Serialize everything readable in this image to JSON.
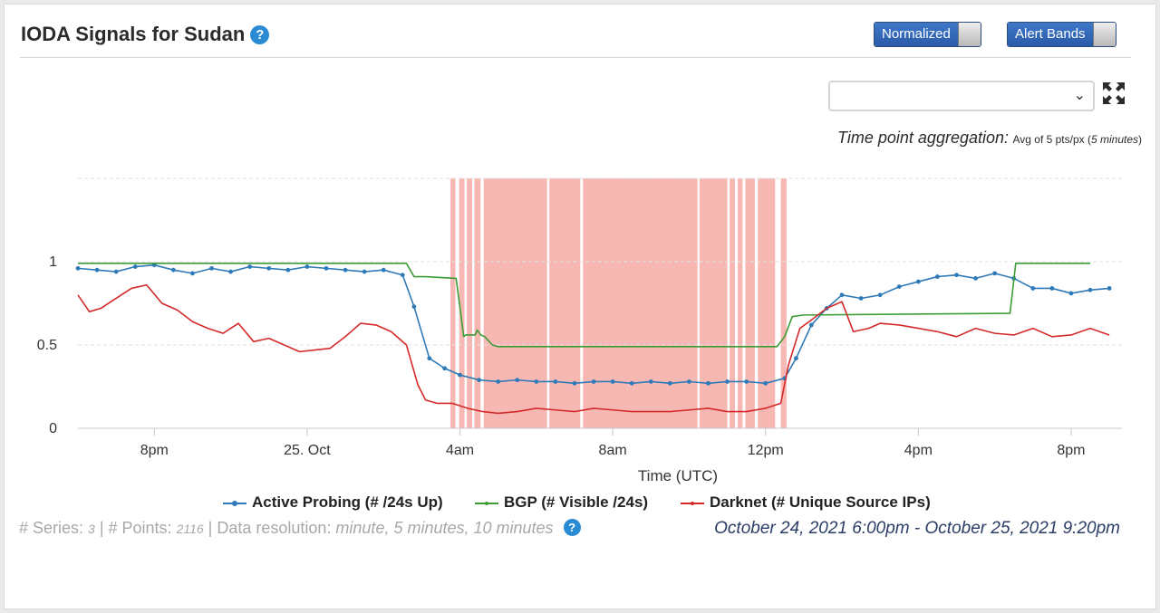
{
  "header": {
    "title": "IODA Signals for Sudan",
    "help_glyph": "?",
    "toggle_normalized": "Normalized",
    "toggle_alert_bands": "Alert Bands"
  },
  "controls": {
    "select_value": "",
    "chevron": "⌄",
    "aggregation_label": "Time point aggregation:",
    "aggregation_value_a": "Avg of 5 pts/px (",
    "aggregation_value_b": "5 minutes",
    "aggregation_value_c": ")"
  },
  "chart_data": {
    "type": "line",
    "xlabel": "Time (UTC)",
    "x_ticks": [
      "8pm",
      "25. Oct",
      "4am",
      "8am",
      "12pm",
      "4pm",
      "8pm"
    ],
    "x_tick_hours": [
      2,
      6,
      10,
      14,
      18,
      22,
      26
    ],
    "x_range_hours": [
      0,
      27.33
    ],
    "y_ticks": [
      "0",
      "0.5",
      "1"
    ],
    "y_tick_values": [
      0,
      0.5,
      1
    ],
    "ylim": [
      0,
      1.5
    ],
    "grid": "horizontal dashed",
    "legend_position": "bottom",
    "alert_band_color": "#f7b8b3",
    "alert_bands": [
      [
        9.75,
        9.88
      ],
      [
        9.98,
        10.12
      ],
      [
        10.18,
        10.32
      ],
      [
        10.38,
        10.54
      ],
      [
        10.62,
        12.28
      ],
      [
        12.34,
        13.15
      ],
      [
        13.22,
        16.22
      ],
      [
        16.27,
        17.0
      ],
      [
        17.06,
        17.2
      ],
      [
        17.27,
        17.4
      ],
      [
        17.47,
        17.72
      ],
      [
        17.8,
        18.25
      ],
      [
        18.4,
        18.55
      ]
    ],
    "series": [
      {
        "name": "Active Probing (# /24s Up)",
        "color": "#2f7ab8",
        "markers": true,
        "x": [
          0,
          0.5,
          1,
          1.5,
          2,
          2.5,
          3,
          3.5,
          4,
          4.5,
          5,
          5.5,
          6,
          6.5,
          7,
          7.5,
          8,
          8.5,
          8.8,
          9.2,
          9.6,
          10,
          10.5,
          11,
          11.5,
          12,
          12.5,
          13,
          13.5,
          14,
          14.5,
          15,
          15.5,
          16,
          16.5,
          17,
          17.5,
          18,
          18.5,
          18.8,
          19.2,
          19.6,
          20,
          20.5,
          21,
          21.5,
          22,
          22.5,
          23,
          23.5,
          24,
          24.5,
          25,
          25.5,
          26,
          26.5,
          27
        ],
        "values": [
          0.96,
          0.95,
          0.94,
          0.97,
          0.98,
          0.95,
          0.93,
          0.96,
          0.94,
          0.97,
          0.96,
          0.95,
          0.97,
          0.96,
          0.95,
          0.94,
          0.95,
          0.92,
          0.73,
          0.42,
          0.36,
          0.32,
          0.29,
          0.28,
          0.29,
          0.28,
          0.28,
          0.27,
          0.28,
          0.28,
          0.27,
          0.28,
          0.27,
          0.28,
          0.27,
          0.28,
          0.28,
          0.27,
          0.3,
          0.42,
          0.62,
          0.72,
          0.8,
          0.78,
          0.8,
          0.85,
          0.88,
          0.91,
          0.92,
          0.9,
          0.93,
          0.9,
          0.84,
          0.84,
          0.81,
          0.83,
          0.84
        ]
      },
      {
        "name": "BGP (# Visible /24s)",
        "color": "#3b9c34",
        "markers": false,
        "x": [
          0,
          8.6,
          8.8,
          9.1,
          9.9,
          10.1,
          10.15,
          10.4,
          10.45,
          10.55,
          10.65,
          10.85,
          11.0,
          16.0,
          18.0,
          18.3,
          18.5,
          18.7,
          19.0,
          24.4,
          24.55,
          26.5
        ],
        "values": [
          0.99,
          0.99,
          0.91,
          0.91,
          0.9,
          0.55,
          0.56,
          0.56,
          0.59,
          0.56,
          0.55,
          0.5,
          0.49,
          0.49,
          0.49,
          0.49,
          0.55,
          0.67,
          0.68,
          0.69,
          0.99,
          0.99
        ]
      },
      {
        "name": "Darknet (# Unique Source IPs)",
        "color": "#d42a2a",
        "markers": false,
        "x": [
          0,
          0.3,
          0.6,
          1,
          1.4,
          1.8,
          2.2,
          2.6,
          3,
          3.4,
          3.8,
          4.2,
          4.6,
          5,
          5.4,
          5.8,
          6.2,
          6.6,
          7,
          7.4,
          7.8,
          8.2,
          8.6,
          8.9,
          9.1,
          9.4,
          9.8,
          10.2,
          10.6,
          11,
          11.5,
          12,
          12.5,
          13,
          13.5,
          14,
          14.5,
          15,
          15.5,
          16,
          16.5,
          17,
          17.5,
          18,
          18.4,
          18.6,
          18.9,
          19.2,
          19.6,
          20,
          20.3,
          20.7,
          21,
          21.5,
          22,
          22.5,
          23,
          23.5,
          24,
          24.5,
          25,
          25.5,
          26,
          26.5,
          27
        ],
        "values": [
          0.8,
          0.7,
          0.72,
          0.78,
          0.84,
          0.86,
          0.75,
          0.71,
          0.64,
          0.6,
          0.57,
          0.63,
          0.52,
          0.54,
          0.5,
          0.46,
          0.47,
          0.48,
          0.55,
          0.63,
          0.62,
          0.58,
          0.5,
          0.26,
          0.17,
          0.15,
          0.15,
          0.12,
          0.1,
          0.09,
          0.1,
          0.12,
          0.11,
          0.1,
          0.12,
          0.11,
          0.1,
          0.1,
          0.1,
          0.11,
          0.12,
          0.1,
          0.1,
          0.12,
          0.15,
          0.38,
          0.6,
          0.65,
          0.72,
          0.76,
          0.58,
          0.6,
          0.63,
          0.62,
          0.6,
          0.58,
          0.55,
          0.6,
          0.57,
          0.56,
          0.6,
          0.55,
          0.56,
          0.6,
          0.56
        ]
      }
    ]
  },
  "footer": {
    "series_label": "# Series: ",
    "series_count": "3",
    "points_label": " | # Points: ",
    "points_count": "2116",
    "resolution_label": " | Data resolution: ",
    "resolution_value": "minute, 5 minutes, 10 minutes",
    "date_range": "October 24, 2021 6:00pm - October 25, 2021 9:20pm"
  }
}
